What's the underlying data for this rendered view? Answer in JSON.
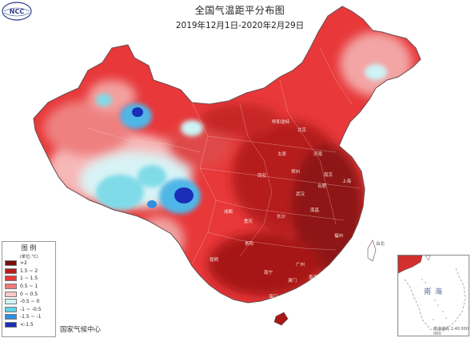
{
  "header": {
    "title": "全国气温距平分布图",
    "subtitle": "2019年12月1日-2020年2月29日",
    "logo_text": "NCC"
  },
  "legend": {
    "title": "图 例",
    "unit": "(单位:℃)",
    "items": [
      {
        "label": ">2",
        "color": "#7a0e0e"
      },
      {
        "label": "1.5 ~ 2",
        "color": "#b71c1c"
      },
      {
        "label": "1 ~ 1.5",
        "color": "#e53935"
      },
      {
        "label": "0.5 ~ 1",
        "color": "#ef7a7a"
      },
      {
        "label": "0 ~ 0.5",
        "color": "#f8c9c9"
      },
      {
        "label": "-0.5 ~ 0",
        "color": "#cdf3f5"
      },
      {
        "label": "-1 ~ -0.5",
        "color": "#5fd3e6"
      },
      {
        "label": "-1.5 ~ -1",
        "color": "#2f8fe0"
      },
      {
        "label": "<-1.5",
        "color": "#1a2fb5"
      }
    ]
  },
  "source": "国家气候中心",
  "inset": {
    "title": "南 海",
    "note": "南海诸岛 1:40 000 000"
  },
  "cities": [
    "呼和浩特",
    "北京",
    "太原",
    "济南",
    "郑州",
    "西安",
    "南京",
    "合肥",
    "上海",
    "武汉",
    "成都",
    "重庆",
    "长沙",
    "南昌",
    "福州",
    "贵阳",
    "昆明",
    "南宁",
    "广州",
    "台北",
    "香港",
    "澳门",
    "海口"
  ]
}
